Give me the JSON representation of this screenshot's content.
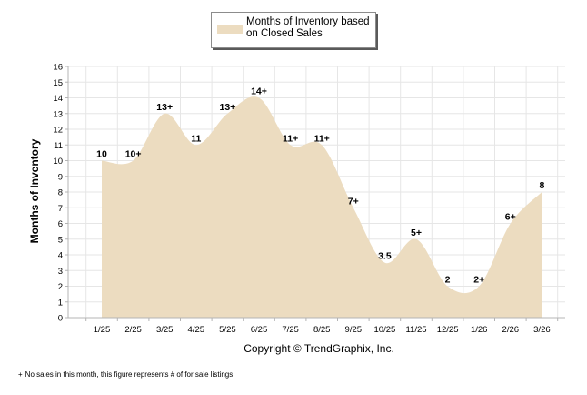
{
  "legend": {
    "series_label": "Months of Inventory based on Closed Sales"
  },
  "copyright": "Copyright © TrendGraphix, Inc.",
  "footnote": {
    "symbol": "+",
    "text": "No sales in this month, this figure represents # of for sale listings"
  },
  "colors": {
    "area_fill": "#ecdcc0",
    "grid": "#e6e6e6",
    "axis": "#b4b4b4"
  },
  "chart_data": {
    "type": "area",
    "title": "",
    "xlabel": "",
    "ylabel": "Months of Inventory",
    "ylim": [
      0,
      16
    ],
    "yticks": [
      0,
      1,
      2,
      3,
      4,
      5,
      6,
      7,
      8,
      9,
      10,
      11,
      12,
      13,
      14,
      15,
      16
    ],
    "grid": true,
    "categories": [
      "1/25",
      "2/25",
      "3/25",
      "4/25",
      "5/25",
      "6/25",
      "7/25",
      "8/25",
      "9/25",
      "10/25",
      "11/25",
      "12/25",
      "1/26",
      "2/26",
      "3/26"
    ],
    "series": [
      {
        "name": "Months of Inventory based on Closed Sales",
        "values": [
          10,
          10,
          13,
          11,
          13,
          14,
          11,
          11,
          7,
          3.5,
          5,
          2,
          2,
          6,
          8
        ],
        "labels": [
          "10",
          "10+",
          "13+",
          "11",
          "13+",
          "14+",
          "11+",
          "11+",
          "7+",
          "3.5",
          "5+",
          "2",
          "2+",
          "6+",
          "8"
        ]
      }
    ]
  }
}
